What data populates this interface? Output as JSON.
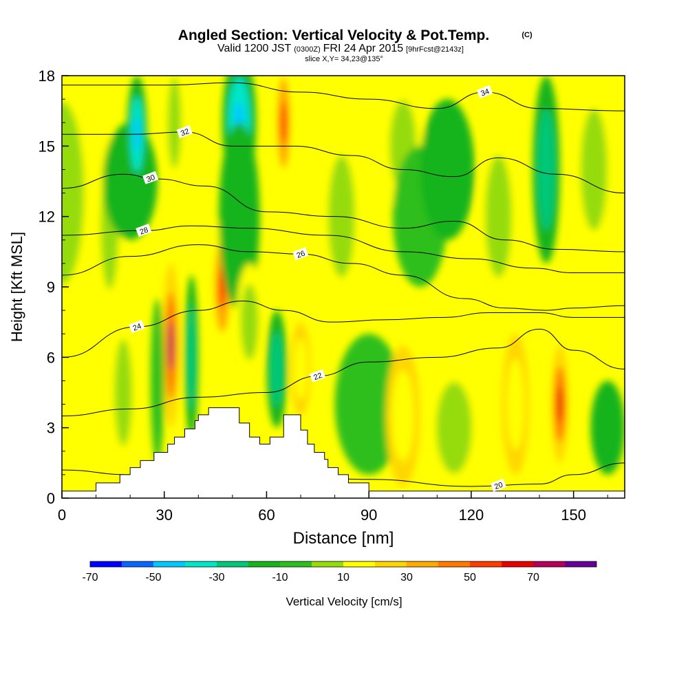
{
  "chart_data": {
    "type": "heatmap",
    "title": {
      "main": "Angled Section: Vertical Velocity & Pot.Temp.",
      "unit": "(C)",
      "valid_prefix": "Valid 1200 JST",
      "valid_z": "(0300Z)",
      "valid_date": "FRI 24 Apr 2015",
      "valid_fcst": "[9hrFcst@2143z]",
      "slice": "slice X,Y= 34,23@135°"
    },
    "xlabel": "Distance [nm]",
    "ylabel": "Height [Kft MSL]",
    "xlim": [
      0,
      165
    ],
    "ylim": [
      0,
      18
    ],
    "x_ticks": [
      "0",
      "30",
      "60",
      "90",
      "120",
      "150"
    ],
    "y_ticks": [
      "0",
      "3",
      "6",
      "9",
      "12",
      "15",
      "18"
    ],
    "colorbar": {
      "label": "Vertical Velocity [cm/s]",
      "tick_labels": [
        "-70",
        "-50",
        "-30",
        "-10",
        "10",
        "30",
        "50",
        "70"
      ],
      "levels": [
        -70,
        -60,
        -50,
        -40,
        -30,
        -20,
        -10,
        0,
        10,
        20,
        30,
        40,
        50,
        60,
        70,
        80
      ],
      "colors": [
        "#0000ff",
        "#0a64ff",
        "#00c8ff",
        "#00e6c8",
        "#00c878",
        "#16b41a",
        "#2dbf1e",
        "#96dc0a",
        "#ffff00",
        "#ffd700",
        "#ffaa00",
        "#ff7800",
        "#ff3c00",
        "#e60000",
        "#b4005a",
        "#640096"
      ]
    },
    "terrain": [
      [
        0,
        0.3
      ],
      [
        10,
        0.3
      ],
      [
        10,
        0.65
      ],
      [
        17,
        0.65
      ],
      [
        17,
        1.0
      ],
      [
        20,
        1.0
      ],
      [
        20,
        1.3
      ],
      [
        23,
        1.3
      ],
      [
        23,
        1.6
      ],
      [
        27,
        1.6
      ],
      [
        27,
        1.95
      ],
      [
        31,
        1.95
      ],
      [
        31,
        2.3
      ],
      [
        33,
        2.3
      ],
      [
        33,
        2.6
      ],
      [
        36,
        2.6
      ],
      [
        36,
        2.95
      ],
      [
        39,
        2.95
      ],
      [
        39,
        3.3
      ],
      [
        40,
        3.3
      ],
      [
        40,
        3.55
      ],
      [
        43,
        3.55
      ],
      [
        43,
        3.85
      ],
      [
        52,
        3.85
      ],
      [
        52,
        3.2
      ],
      [
        55,
        3.2
      ],
      [
        55,
        2.6
      ],
      [
        58,
        2.6
      ],
      [
        58,
        2.3
      ],
      [
        61,
        2.3
      ],
      [
        61,
        2.6
      ],
      [
        65,
        2.6
      ],
      [
        65,
        3.55
      ],
      [
        70,
        3.55
      ],
      [
        70,
        2.9
      ],
      [
        72,
        2.9
      ],
      [
        72,
        2.3
      ],
      [
        74,
        2.3
      ],
      [
        74,
        1.95
      ],
      [
        77,
        1.95
      ],
      [
        77,
        1.65
      ],
      [
        78,
        1.65
      ],
      [
        78,
        1.3
      ],
      [
        81,
        1.3
      ],
      [
        81,
        1.0
      ],
      [
        84,
        1.0
      ],
      [
        84,
        0.65
      ],
      [
        90,
        0.65
      ],
      [
        90,
        0.3
      ],
      [
        165,
        0.3
      ]
    ],
    "velocity_cells": [
      {
        "x": 0,
        "x_half_width": 10,
        "y": 13,
        "y_half_height": 6,
        "value": 10
      },
      {
        "x": 14,
        "x_half_width": 4,
        "y": 11.5,
        "y_half_height": 4,
        "value": 10
      },
      {
        "x": 20,
        "x_half_width": 8,
        "y": 13.5,
        "y_half_height": 2.5,
        "value": -20
      },
      {
        "x": 22,
        "x_half_width": 3,
        "y": 15.5,
        "y_half_height": 2.5,
        "value": -50
      },
      {
        "x": 18,
        "x_half_width": 4,
        "y": 4.5,
        "y_half_height": 3.5,
        "value": 10
      },
      {
        "x": 33,
        "x_half_width": 3,
        "y": 16,
        "y_half_height": 3,
        "value": 10
      },
      {
        "x": 32,
        "x_half_width": 2.5,
        "y": 6.5,
        "y_half_height": 3.5,
        "value": 70
      },
      {
        "x": 28,
        "x_half_width": 2,
        "y": 5,
        "y_half_height": 3.5,
        "value": -10
      },
      {
        "x": 38,
        "x_half_width": 2,
        "y": 6,
        "y_half_height": 3.5,
        "value": -30
      },
      {
        "x": 47,
        "x_half_width": 3.5,
        "y": 9,
        "y_half_height": 3,
        "value": 50
      },
      {
        "x": 52,
        "x_half_width": 5,
        "y": 16,
        "y_half_height": 3,
        "value": -50
      },
      {
        "x": 52,
        "x_half_width": 6,
        "y": 12,
        "y_half_height": 4,
        "value": -20
      },
      {
        "x": 55,
        "x_half_width": 4,
        "y": 7.5,
        "y_half_height": 2.5,
        "value": 10
      },
      {
        "x": 65,
        "x_half_width": 3,
        "y": 16,
        "y_half_height": 3,
        "value": 50
      },
      {
        "x": 63,
        "x_half_width": 3,
        "y": 5.5,
        "y_half_height": 2.5,
        "value": -30
      },
      {
        "x": 70,
        "x_half_width": 3,
        "y": 5.5,
        "y_half_height": 2,
        "value": 20
      },
      {
        "x": 82,
        "x_half_width": 6,
        "y": 12,
        "y_half_height": 4,
        "value": 10
      },
      {
        "x": 90,
        "x_half_width": 10,
        "y": 4,
        "y_half_height": 3,
        "value": -10
      },
      {
        "x": 100,
        "x_half_width": 6,
        "y": 15,
        "y_half_height": 3,
        "value": 10
      },
      {
        "x": 105,
        "x_half_width": 8,
        "y": 12,
        "y_half_height": 3,
        "value": -10
      },
      {
        "x": 113,
        "x_half_width": 8,
        "y": 14,
        "y_half_height": 3,
        "value": -20
      },
      {
        "x": 100,
        "x_half_width": 5,
        "y": 3.5,
        "y_half_height": 3,
        "value": 20
      },
      {
        "x": 115,
        "x_half_width": 8,
        "y": 3,
        "y_half_height": 3,
        "value": 10
      },
      {
        "x": 128,
        "x_half_width": 6,
        "y": 12,
        "y_half_height": 4,
        "value": 10
      },
      {
        "x": 133,
        "x_half_width": 4,
        "y": 4,
        "y_half_height": 3,
        "value": 20
      },
      {
        "x": 142,
        "x_half_width": 4,
        "y": 14,
        "y_half_height": 4,
        "value": -30
      },
      {
        "x": 146,
        "x_half_width": 2.5,
        "y": 4,
        "y_half_height": 2.5,
        "value": 60
      },
      {
        "x": 156,
        "x_half_width": 6,
        "y": 14,
        "y_half_height": 4,
        "value": 10
      },
      {
        "x": 160,
        "x_half_width": 5,
        "y": 3,
        "y_half_height": 2,
        "value": -20
      }
    ],
    "isentropes": [
      {
        "label": "20",
        "label_x": 128,
        "points": [
          [
            0,
            1.2
          ],
          [
            20,
            1.0
          ],
          [
            60,
            1.0
          ],
          [
            90,
            0.8
          ],
          [
            120,
            0.5
          ],
          [
            140,
            0.6
          ],
          [
            150,
            1.0
          ],
          [
            165,
            1.5
          ]
        ]
      },
      {
        "label": "22",
        "label_x": 75,
        "points": [
          [
            0,
            3.5
          ],
          [
            20,
            3.8
          ],
          [
            40,
            4.3
          ],
          [
            60,
            4.5
          ],
          [
            75,
            5.2
          ],
          [
            90,
            5.8
          ],
          [
            110,
            6.0
          ],
          [
            128,
            6.4
          ],
          [
            140,
            7.2
          ],
          [
            150,
            6.3
          ],
          [
            165,
            5.5
          ]
        ]
      },
      {
        "label": "24",
        "label_x": 22,
        "points": [
          [
            0,
            6.0
          ],
          [
            22,
            7.3
          ],
          [
            40,
            8.0
          ],
          [
            53,
            8.4
          ],
          [
            65,
            8.0
          ],
          [
            79,
            7.5
          ],
          [
            95,
            7.6
          ],
          [
            112,
            7.7
          ],
          [
            125,
            7.9
          ],
          [
            140,
            7.9
          ],
          [
            150,
            7.7
          ],
          [
            165,
            7.7
          ]
        ]
      },
      {
        "label": "26",
        "label_x": 70,
        "points": [
          [
            0,
            9.5
          ],
          [
            20,
            10.3
          ],
          [
            40,
            10.8
          ],
          [
            55,
            10.5
          ],
          [
            70,
            10.4
          ],
          [
            85,
            10.0
          ],
          [
            100,
            9.5
          ],
          [
            118,
            8.5
          ],
          [
            130,
            8.1
          ],
          [
            142,
            8.0
          ],
          [
            150,
            8.1
          ],
          [
            165,
            8.2
          ]
        ]
      },
      {
        "label": "28",
        "label_x": 24,
        "points": [
          [
            0,
            11.2
          ],
          [
            24,
            11.4
          ],
          [
            38,
            11.6
          ],
          [
            55,
            11.5
          ],
          [
            78,
            11.2
          ],
          [
            100,
            10.5
          ],
          [
            120,
            10.2
          ],
          [
            138,
            9.8
          ],
          [
            150,
            9.6
          ],
          [
            165,
            9.6
          ]
        ]
      },
      {
        "label": "30",
        "label_x": 26,
        "points": [
          [
            0,
            13.2
          ],
          [
            18,
            13.8
          ],
          [
            28,
            13.6
          ],
          [
            42,
            13.3
          ],
          [
            60,
            12.2
          ],
          [
            80,
            12.0
          ],
          [
            100,
            11.5
          ],
          [
            115,
            11.8
          ],
          [
            130,
            11.0
          ],
          [
            145,
            10.6
          ],
          [
            165,
            10.5
          ]
        ]
      },
      {
        "label": "32",
        "label_x": 36,
        "points": [
          [
            0,
            15.5
          ],
          [
            20,
            15.5
          ],
          [
            36,
            15.6
          ],
          [
            50,
            15.0
          ],
          [
            68,
            15.0
          ],
          [
            85,
            14.6
          ],
          [
            100,
            14.0
          ],
          [
            115,
            13.7
          ],
          [
            128,
            14.5
          ],
          [
            145,
            13.8
          ],
          [
            165,
            13.0
          ]
        ]
      },
      {
        "label": "34",
        "label_x": 124,
        "points": [
          [
            0,
            17.6
          ],
          [
            30,
            17.6
          ],
          [
            50,
            17.7
          ],
          [
            70,
            17.3
          ],
          [
            90,
            17.0
          ],
          [
            110,
            16.6
          ],
          [
            124,
            17.3
          ],
          [
            140,
            16.6
          ],
          [
            165,
            16.5
          ]
        ]
      }
    ]
  }
}
